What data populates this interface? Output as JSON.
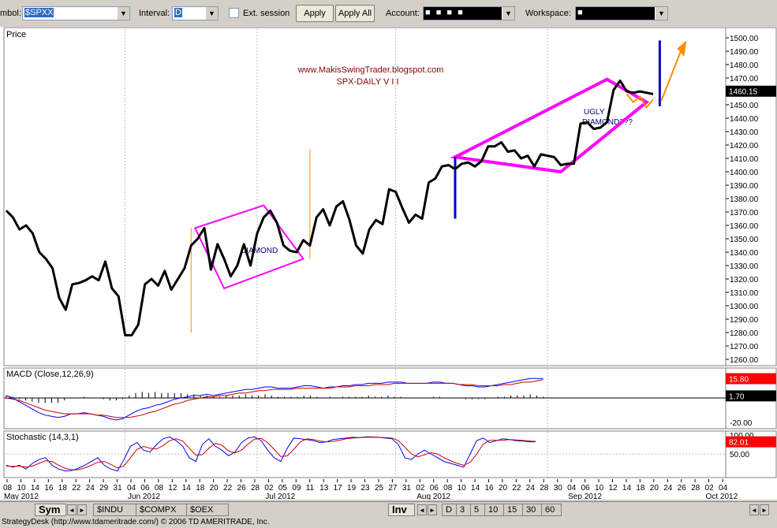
{
  "toolbar": {
    "symbol_label": "mbol:",
    "symbol_value": "$SPXX",
    "interval_label": "Interval:",
    "interval_value": "D",
    "ext_session_label": "Ext. session",
    "apply_label": "Apply",
    "apply_all_label": "Apply All",
    "account_label": "Account:",
    "account_value": "■ ■ ■ ■",
    "workspace_label": "Workspace:",
    "workspace_value": "■"
  },
  "colors": {
    "price_line": "#000000",
    "diamond": "#ff00ff",
    "orange": "#ff8c00",
    "blue": "#0000cc",
    "macd_blue": "#0000ff",
    "macd_red": "#cc0000",
    "badge_red": "#ff0000"
  },
  "chart_data": [
    {
      "type": "line",
      "panel": "price",
      "title": "Price",
      "annotation_lines": [
        "www.MakisSwingTrader.blogspot.com",
        "SPX-DAILY  V I I"
      ],
      "annotations": [
        "DIAMOND",
        "UGLY",
        "DIAMOND???"
      ],
      "ylim": [
        1260,
        1500
      ],
      "yticks": [
        "1500.00",
        "1490.00",
        "1480.00",
        "1470.00",
        "1460.00",
        "1450.00",
        "1440.00",
        "1430.00",
        "1420.00",
        "1410.00",
        "1400.00",
        "1390.00",
        "1380.00",
        "1370.00",
        "1360.00",
        "1350.00",
        "1340.00",
        "1330.00",
        "1320.00",
        "1310.00",
        "1300.00",
        "1290.00",
        "1280.00",
        "1270.00",
        "1260.00"
      ],
      "last_price": "1460.15",
      "series": [
        {
          "values": [
            1371,
            1366,
            1357,
            1360,
            1354,
            1340,
            1335,
            1328,
            1306,
            1297,
            1316,
            1317,
            1319,
            1322,
            1319,
            1333,
            1313,
            1307,
            1278,
            1278,
            1286,
            1316,
            1320,
            1315,
            1326,
            1312,
            1320,
            1328,
            1345,
            1350,
            1358,
            1327,
            1346,
            1335,
            1322,
            1330,
            1346,
            1330,
            1354,
            1366,
            1371,
            1362,
            1345,
            1341,
            1340,
            1349,
            1345,
            1366,
            1372,
            1360,
            1374,
            1378,
            1364,
            1345,
            1339,
            1357,
            1364,
            1361,
            1387,
            1385,
            1373,
            1362,
            1368,
            1365,
            1392,
            1395,
            1404,
            1405,
            1402,
            1406,
            1407,
            1404,
            1408,
            1419,
            1419,
            1422,
            1415,
            1416,
            1410,
            1412,
            1404,
            1413,
            1412,
            1411,
            1405,
            1406,
            1406,
            1436,
            1437,
            1432,
            1433,
            1437,
            1461,
            1468,
            1460,
            1459,
            1460,
            1459,
            1458
          ]
        }
      ]
    },
    {
      "type": "line",
      "panel": "macd",
      "title": "MACD (Close,12,26,9)",
      "ylim": [
        -20,
        20
      ],
      "yticks": [
        "-20.00"
      ],
      "badges": [
        "15.80",
        "1.70"
      ],
      "series": [
        {
          "name": "MACD",
          "values": [
            2,
            0,
            -3,
            -6,
            -9,
            -12,
            -14,
            -15,
            -16,
            -15,
            -13,
            -13,
            -12,
            -13,
            -14,
            -15,
            -17,
            -18,
            -17,
            -14,
            -11,
            -9,
            -8,
            -6,
            -5,
            -3,
            -1,
            0,
            1,
            2,
            2,
            3,
            2,
            3,
            4,
            5,
            6,
            7,
            7,
            8,
            9,
            9,
            8,
            8,
            8,
            9,
            10,
            10,
            9,
            8,
            9,
            9,
            10,
            10,
            11,
            11,
            12,
            12,
            12,
            13,
            13,
            13,
            12,
            12,
            12,
            12,
            13,
            13,
            12,
            12,
            11,
            10,
            10,
            9,
            9,
            10,
            11,
            12,
            13,
            14,
            15,
            16,
            16,
            16
          ]
        },
        {
          "name": "Signal",
          "values": [
            0,
            -1,
            -2,
            -4,
            -6,
            -8,
            -10,
            -11,
            -12,
            -13,
            -13,
            -13,
            -13,
            -13,
            -14,
            -14,
            -15,
            -16,
            -16,
            -16,
            -15,
            -14,
            -12,
            -11,
            -9,
            -7,
            -5,
            -4,
            -2,
            -1,
            0,
            1,
            1,
            2,
            2,
            3,
            4,
            4,
            5,
            6,
            6,
            7,
            7,
            7,
            7,
            8,
            8,
            8,
            8,
            8,
            8,
            9,
            9,
            9,
            10,
            10,
            10,
            11,
            11,
            11,
            12,
            12,
            12,
            12,
            12,
            12,
            12,
            12,
            12,
            12,
            11,
            11,
            11,
            10,
            10,
            10,
            10,
            11,
            11,
            12,
            13,
            13,
            14,
            15
          ]
        }
      ],
      "histogram": [
        2,
        1,
        -1,
        -2,
        -3,
        -4,
        -4,
        -4,
        -4,
        -2,
        0,
        0,
        1,
        0,
        0,
        -1,
        -2,
        -2,
        -1,
        2,
        4,
        5,
        4,
        5,
        4,
        4,
        4,
        4,
        3,
        3,
        2,
        2,
        1,
        1,
        2,
        2,
        2,
        3,
        2,
        2,
        3,
        2,
        1,
        1,
        1,
        1,
        2,
        2,
        1,
        0,
        1,
        0,
        1,
        1,
        1,
        1,
        2,
        1,
        1,
        2,
        1,
        1,
        0,
        0,
        0,
        0,
        1,
        1,
        0,
        0,
        0,
        -1,
        -1,
        -1,
        -1,
        0,
        1,
        1,
        2,
        2,
        2,
        3,
        2,
        1
      ]
    },
    {
      "type": "line",
      "panel": "stochastic",
      "title": "Stochastic (14,3,1)",
      "ylim": [
        0,
        100
      ],
      "yticks": [
        "100.00",
        "50.00"
      ],
      "badges": [
        "82.01"
      ],
      "series": [
        {
          "name": "%K",
          "values": [
            20,
            15,
            20,
            10,
            25,
            35,
            40,
            20,
            10,
            5,
            6,
            12,
            20,
            30,
            40,
            20,
            10,
            5,
            35,
            70,
            80,
            60,
            55,
            75,
            90,
            95,
            85,
            70,
            40,
            30,
            75,
            90,
            70,
            60,
            45,
            55,
            80,
            92,
            95,
            85,
            60,
            40,
            30,
            65,
            92,
            90,
            88,
            85,
            80,
            82,
            88,
            90,
            92,
            94,
            93,
            95,
            95,
            94,
            92,
            90,
            75,
            40,
            35,
            50,
            60,
            50,
            40,
            30,
            25,
            20,
            15,
            50,
            85,
            92,
            80,
            85,
            90,
            88,
            85,
            84,
            82,
            82
          ]
        },
        {
          "name": "%D",
          "values": [
            18,
            17,
            18,
            15,
            18,
            25,
            32,
            30,
            20,
            12,
            8,
            8,
            13,
            20,
            28,
            30,
            22,
            13,
            18,
            40,
            62,
            70,
            65,
            63,
            72,
            85,
            90,
            84,
            65,
            47,
            48,
            65,
            78,
            73,
            58,
            53,
            60,
            76,
            89,
            91,
            80,
            62,
            43,
            45,
            62,
            82,
            90,
            88,
            84,
            82,
            83,
            86,
            90,
            92,
            93,
            94,
            94,
            94,
            93,
            92,
            85,
            68,
            50,
            42,
            48,
            53,
            50,
            40,
            32,
            25,
            20,
            28,
            50,
            76,
            86,
            86,
            86,
            88,
            87,
            86,
            84,
            83
          ]
        }
      ]
    }
  ],
  "x_axis": {
    "ticks": [
      "08",
      "10",
      "14",
      "16",
      "18",
      "22",
      "24",
      "29",
      "31",
      "04",
      "06",
      "08",
      "12",
      "14",
      "18",
      "20",
      "22",
      "26",
      "28",
      "02",
      "05",
      "09",
      "11",
      "13",
      "17",
      "19",
      "23",
      "25",
      "27",
      "31",
      "02",
      "06",
      "08",
      "10",
      "14",
      "16",
      "20",
      "22",
      "24",
      "28",
      "30",
      "04",
      "06",
      "10",
      "12",
      "14",
      "18",
      "20",
      "24",
      "26",
      "28",
      "02",
      "04"
    ],
    "months": [
      "May 2012",
      "Jun 2012",
      "Jul 2012",
      "Aug 2012",
      "Sep 2012",
      "Oct 2012"
    ]
  },
  "bottombar": {
    "sym_tab": "Sym",
    "symbol_tabs": [
      "$INDU",
      "$COMPX",
      "$OEX"
    ],
    "inv_tab": "Inv",
    "interval_tabs": [
      "D",
      "3",
      "5",
      "10",
      "15",
      "30",
      "60"
    ]
  },
  "status": "StrategyDesk (http://www.tdameritrade.com/) © 2006 TD AMERITRADE, Inc."
}
